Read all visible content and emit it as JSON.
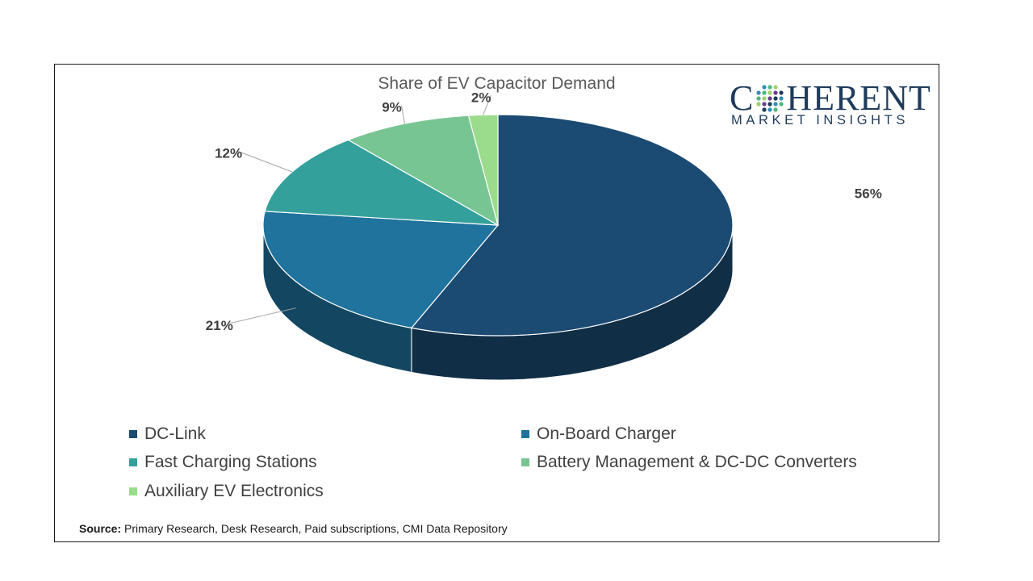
{
  "chart_data": {
    "type": "pie",
    "title": "Share of EV Capacitor Demand",
    "categories": [
      "DC-Link",
      "On-Board Charger",
      "Fast Charging Stations",
      "Battery Management & DC-DC Converters",
      "Auxiliary EV Electronics"
    ],
    "values": [
      56,
      21,
      12,
      9,
      2
    ],
    "data_labels": [
      "56%",
      "21%",
      "12%",
      "9%",
      "2%"
    ],
    "colors": [
      "#1b4a72",
      "#1f739d",
      "#34a09c",
      "#78c594",
      "#9bdc8c"
    ],
    "style": "3d",
    "legend_position": "bottom"
  },
  "logo": {
    "word_left": "C",
    "word_right": "HERENT",
    "subtitle": "MARKET INSIGHTS"
  },
  "source": {
    "label": "Source:",
    "text": "Primary Research, Desk Research, Paid subscriptions, CMI Data Repository"
  }
}
